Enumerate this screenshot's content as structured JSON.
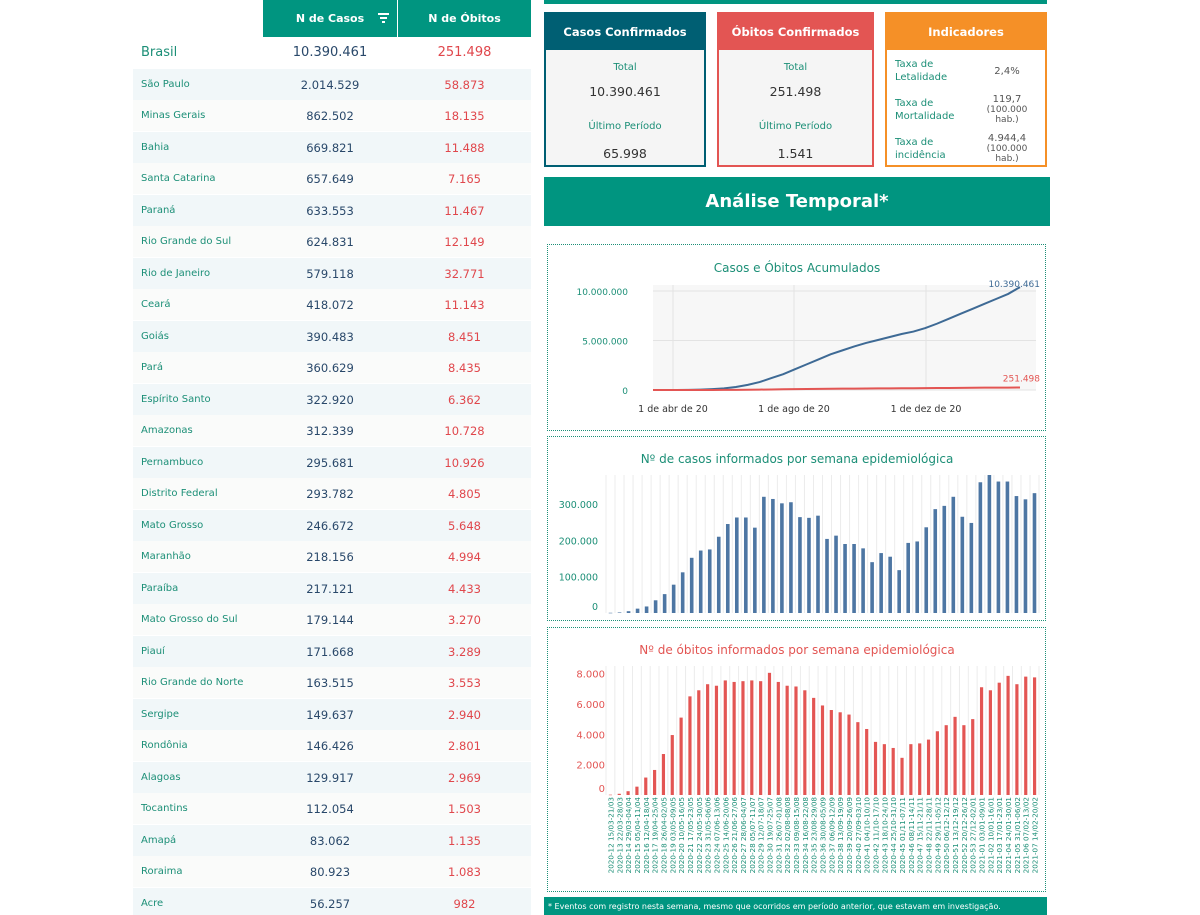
{
  "table": {
    "header": {
      "cases": "N de Casos",
      "deaths": "N de Óbitos"
    },
    "rows": [
      {
        "name": "Brasil",
        "cases": "10.390.461",
        "deaths": "251.498"
      },
      {
        "name": "São Paulo",
        "cases": "2.014.529",
        "deaths": "58.873"
      },
      {
        "name": "Minas Gerais",
        "cases": "862.502",
        "deaths": "18.135"
      },
      {
        "name": "Bahia",
        "cases": "669.821",
        "deaths": "11.488"
      },
      {
        "name": "Santa Catarina",
        "cases": "657.649",
        "deaths": "7.165"
      },
      {
        "name": "Paraná",
        "cases": "633.553",
        "deaths": "11.467"
      },
      {
        "name": "Rio Grande do Sul",
        "cases": "624.831",
        "deaths": "12.149"
      },
      {
        "name": "Rio de Janeiro",
        "cases": "579.118",
        "deaths": "32.771"
      },
      {
        "name": "Ceará",
        "cases": "418.072",
        "deaths": "11.143"
      },
      {
        "name": "Goiás",
        "cases": "390.483",
        "deaths": "8.451"
      },
      {
        "name": "Pará",
        "cases": "360.629",
        "deaths": "8.435"
      },
      {
        "name": "Espírito Santo",
        "cases": "322.920",
        "deaths": "6.362"
      },
      {
        "name": "Amazonas",
        "cases": "312.339",
        "deaths": "10.728"
      },
      {
        "name": "Pernambuco",
        "cases": "295.681",
        "deaths": "10.926"
      },
      {
        "name": "Distrito Federal",
        "cases": "293.782",
        "deaths": "4.805"
      },
      {
        "name": "Mato Grosso",
        "cases": "246.672",
        "deaths": "5.648"
      },
      {
        "name": "Maranhão",
        "cases": "218.156",
        "deaths": "4.994"
      },
      {
        "name": "Paraíba",
        "cases": "217.121",
        "deaths": "4.433"
      },
      {
        "name": "Mato Grosso do Sul",
        "cases": "179.144",
        "deaths": "3.270"
      },
      {
        "name": "Piauí",
        "cases": "171.668",
        "deaths": "3.289"
      },
      {
        "name": "Rio Grande do Norte",
        "cases": "163.515",
        "deaths": "3.553"
      },
      {
        "name": "Sergipe",
        "cases": "149.637",
        "deaths": "2.940"
      },
      {
        "name": "Rondônia",
        "cases": "146.426",
        "deaths": "2.801"
      },
      {
        "name": "Alagoas",
        "cases": "129.917",
        "deaths": "2.969"
      },
      {
        "name": "Tocantins",
        "cases": "112.054",
        "deaths": "1.503"
      },
      {
        "name": "Amapá",
        "cases": "83.062",
        "deaths": "1.135"
      },
      {
        "name": "Roraima",
        "cases": "80.923",
        "deaths": "1.083"
      },
      {
        "name": "Acre",
        "cases": "56.257",
        "deaths": "982"
      }
    ]
  },
  "cards": {
    "cases": {
      "title": "Casos Confirmados",
      "total_label": "Total",
      "total": "10.390.461",
      "period_label": "Último Período",
      "period": "65.998"
    },
    "deaths": {
      "title": "Óbitos Confirmados",
      "total_label": "Total",
      "total": "251.498",
      "period_label": "Último Período",
      "period": "1.541"
    },
    "indicators": {
      "title": "Indicadores",
      "letalidade_label": "Taxa de Letalidade",
      "letalidade": "2,4%",
      "mortalidade_label": "Taxa de Mortalidade",
      "mortalidade": "119,7",
      "mortalidade_unit": "(100.000 hab.)",
      "incidencia_label": "Taxa de incidência",
      "incidencia": "4.944,4",
      "incidencia_unit": "(100.000 hab.)"
    }
  },
  "section_title": "Análise Temporal*",
  "footnote": "* Eventos com registro nesta semana, mesmo que ocorridos em período anterior, que estavam em investigação.",
  "colors": {
    "teal": "#009580",
    "cases": "#3e6a95",
    "deaths": "#e35553",
    "orange": "#f59027",
    "navy": "#005f73"
  },
  "chart_data": [
    {
      "type": "line",
      "title": "Casos e Óbitos Acumulados",
      "x_ticks": [
        "1 de abr de 20",
        "1 de ago de 20",
        "1 de dez de 20"
      ],
      "y_ticks": [
        "0",
        "5.000.000",
        "10.000.000"
      ],
      "ylim": [
        0,
        10600000
      ],
      "series": [
        {
          "end_label": "10.390.461",
          "color": "#3e6a95",
          "values": [
            0,
            1000,
            5000,
            15000,
            40000,
            90000,
            160000,
            300000,
            520000,
            800000,
            1200000,
            1600000,
            2100000,
            2600000,
            3100000,
            3600000,
            4000000,
            4400000,
            4750000,
            5050000,
            5350000,
            5650000,
            5900000,
            6250000,
            6700000,
            7200000,
            7700000,
            8200000,
            8700000,
            9200000,
            9700000,
            10390461
          ]
        },
        {
          "end_label": "251.498",
          "color": "#e35553",
          "values": [
            0,
            50,
            300,
            1000,
            2500,
            5500,
            10000,
            18000,
            29000,
            41000,
            56000,
            70000,
            85000,
            100000,
            113000,
            125000,
            136000,
            145000,
            153000,
            160000,
            166000,
            172000,
            178000,
            186000,
            196000,
            207000,
            217000,
            226000,
            234000,
            240000,
            246000,
            251498
          ]
        }
      ]
    },
    {
      "type": "bar",
      "title": "Nº de casos informados por semana epidemiológica",
      "y_ticks": [
        "0",
        "100.000",
        "200.000",
        "300.000"
      ],
      "ylim": [
        0,
        380000
      ],
      "color": "#4d76a3",
      "values": [
        600,
        1500,
        5000,
        12000,
        18000,
        35000,
        52000,
        78000,
        112000,
        152000,
        172000,
        175000,
        210000,
        245000,
        263000,
        263000,
        235000,
        320000,
        314000,
        302000,
        305000,
        264000,
        262000,
        268000,
        204000,
        213000,
        190000,
        190000,
        178000,
        140000,
        165000,
        155000,
        118000,
        193000,
        197000,
        236000,
        286000,
        295000,
        320000,
        265000,
        248000,
        360000,
        380000,
        362000,
        362000,
        322000,
        313000,
        330000
      ]
    },
    {
      "type": "bar",
      "title": "Nº de óbitos informados por semana epidemiológica",
      "y_ticks": [
        "0",
        "2.000",
        "4.000",
        "6.000",
        "8.000"
      ],
      "ylim": [
        0,
        8500
      ],
      "color": "#e35553",
      "categories": [
        "2020-12 15/03-21/03",
        "2020-13 22/03-28/03",
        "2020-14 29/03-04/04",
        "2020-15 05/04-11/04",
        "2020-16 12/04-18/04",
        "2020-17 19/04-25/04",
        "2020-18 26/04-02/05",
        "2020-19 03/05-09/05",
        "2020-20 10/05-16/05",
        "2020-21 17/05-23/05",
        "2020-22 24/05-30/05",
        "2020-23 31/05-06/06",
        "2020-24 07/06-13/06",
        "2020-25 14/06-20/06",
        "2020-26 21/06-27/06",
        "2020-27 28/06-04/07",
        "2020-28 05/07-11/07",
        "2020-29 12/07-18/07",
        "2020-30 19/07-25/07",
        "2020-31 26/07-01/08",
        "2020-32 02/08-08/08",
        "2020-33 09/08-15/08",
        "2020-34 16/08-22/08",
        "2020-35 23/08-29/08",
        "2020-36 30/08-05/09",
        "2020-37 06/09-12/09",
        "2020-38 13/09-19/09",
        "2020-39 20/09-26/09",
        "2020-40 27/09-03/10",
        "2020-41 04/10-10/10",
        "2020-42 11/10-17/10",
        "2020-43 18/10-24/10",
        "2020-44 25/10-31/10",
        "2020-45 01/11-07/11",
        "2020-46 08/11-14/11",
        "2020-47 15/11-21/11",
        "2020-48 22/11-28/11",
        "2020-49 29/11-05/12",
        "2020-50 06/12-12/12",
        "2020-51 13/12-19/12",
        "2020-52 20/12-26/12",
        "2020-53 27/12-02/01",
        "2021-01 03/01-09/01",
        "2021-02 10/01-16/01",
        "2021-03 17/01-23/01",
        "2021-04 24/01-30/01",
        "2021-05 31/01-06/02",
        "2021-06 07/02-13/02",
        "2021-07 14/02-20/02"
      ],
      "values": [
        20,
        80,
        250,
        550,
        1150,
        1650,
        2700,
        3950,
        5100,
        6500,
        6900,
        7300,
        7200,
        7550,
        7450,
        7500,
        7550,
        7500,
        8050,
        7450,
        7200,
        7150,
        6900,
        6400,
        5900,
        5600,
        5450,
        5300,
        4800,
        4350,
        3500,
        3350,
        3100,
        2450,
        3350,
        3400,
        3650,
        4200,
        4600,
        5150,
        4600,
        5000,
        7100,
        6900,
        7400,
        7850,
        7300,
        7800,
        7750
      ]
    }
  ]
}
